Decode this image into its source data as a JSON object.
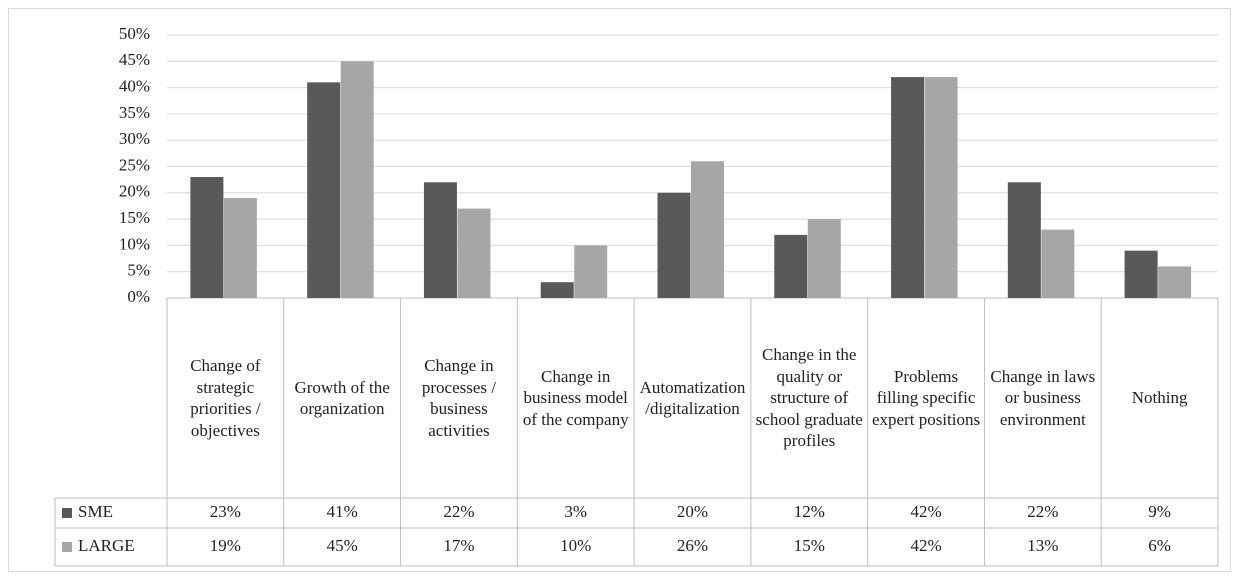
{
  "chart_data": {
    "type": "bar",
    "categories": [
      "Change of strategic priorities / objectives",
      "Growth of the organization",
      "Change in processes / business activities",
      "Change in business model of the company",
      "Automatization/digitalization",
      "Change in the quality or structure of school graduate profiles",
      "Problems filling specific expert positions",
      "Change in laws or business environment",
      "Nothing"
    ],
    "series": [
      {
        "name": "SME",
        "color": "#595959",
        "values": [
          23,
          41,
          22,
          3,
          20,
          12,
          42,
          22,
          9
        ],
        "value_labels": [
          "23%",
          "41%",
          "22%",
          "3%",
          "20%",
          "12%",
          "42%",
          "22%",
          "9%"
        ]
      },
      {
        "name": "LARGE",
        "color": "#a6a6a6",
        "values": [
          19,
          45,
          17,
          10,
          26,
          15,
          42,
          13,
          6
        ],
        "value_labels": [
          "19%",
          "45%",
          "17%",
          "10%",
          "26%",
          "15%",
          "42%",
          "13%",
          "6%"
        ]
      }
    ],
    "ylim": [
      0,
      50
    ],
    "yticks": [
      {
        "value": 0,
        "label": "0%"
      },
      {
        "value": 5,
        "label": "5%"
      },
      {
        "value": 10,
        "label": "10%"
      },
      {
        "value": 15,
        "label": "15%"
      },
      {
        "value": 20,
        "label": "20%"
      },
      {
        "value": 25,
        "label": "25%"
      },
      {
        "value": 30,
        "label": "30%"
      },
      {
        "value": 35,
        "label": "35%"
      },
      {
        "value": 40,
        "label": "40%"
      },
      {
        "value": 45,
        "label": "45%"
      },
      {
        "value": 50,
        "label": "50%"
      }
    ],
    "grid": true
  }
}
